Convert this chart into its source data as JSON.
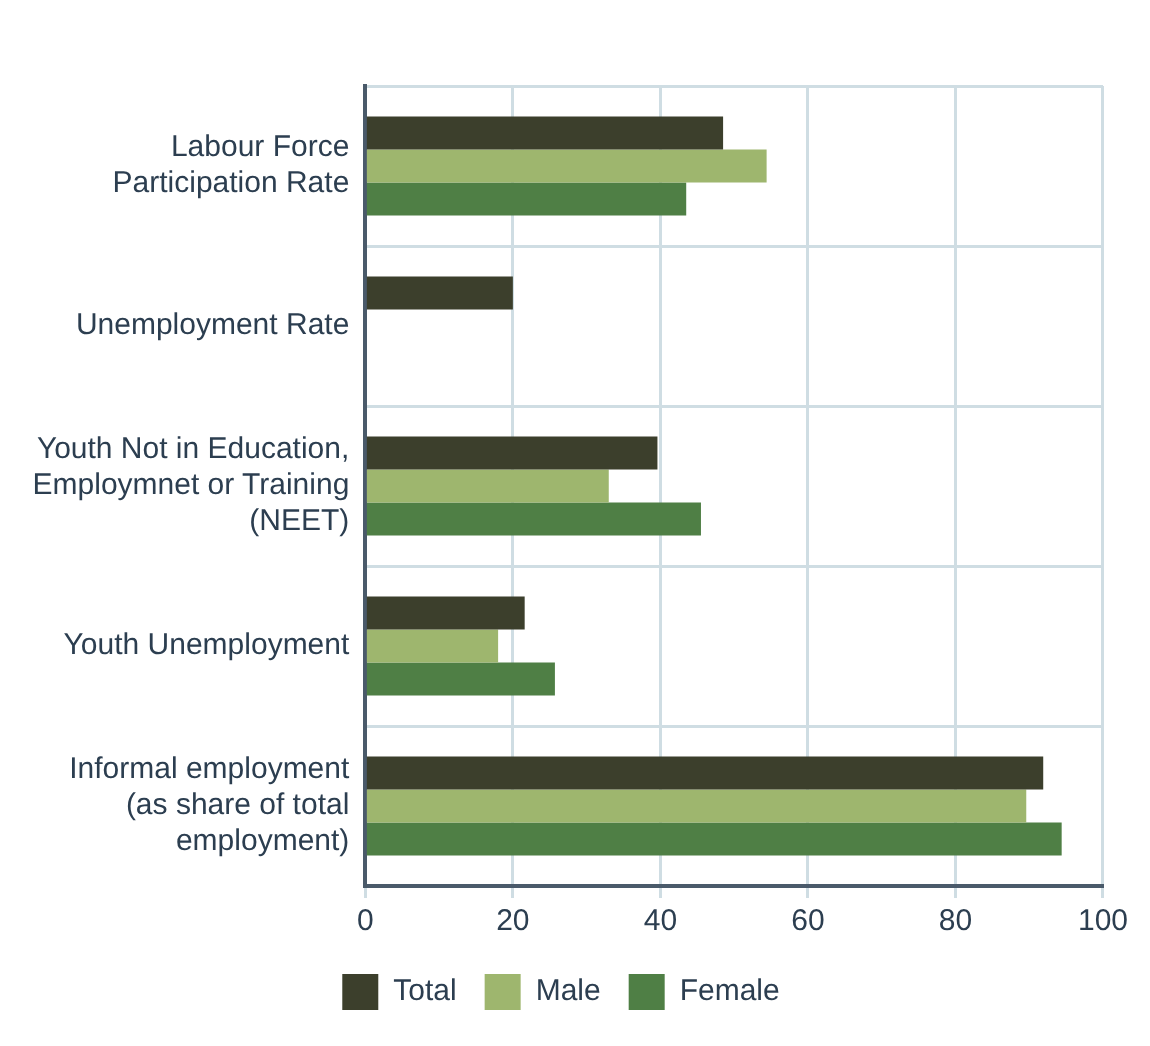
{
  "chart_data": {
    "type": "bar",
    "orientation": "horizontal",
    "categories": [
      "Labour Force\nParticipation Rate",
      "Unemployment Rate",
      "Youth Not in Education,\nEmploymnet or Training\n(NEET)",
      "Youth Unemployment",
      "Informal employment\n(as share of total\nemployment)"
    ],
    "series": [
      {
        "name": "Total",
        "color": "#3c3f2c",
        "values": [
          48.5,
          20,
          39.6,
          21.6,
          91.9
        ]
      },
      {
        "name": "Male",
        "color": "#9eb66e",
        "values": [
          54.4,
          null,
          33,
          18,
          89.6
        ]
      },
      {
        "name": "Female",
        "color": "#4f7f45",
        "values": [
          43.5,
          null,
          45.5,
          25.7,
          94.4
        ]
      }
    ],
    "xlim": [
      0,
      100
    ],
    "xticks": [
      0,
      20,
      40,
      60,
      80,
      100
    ],
    "grid": true,
    "legend": "bottom"
  }
}
